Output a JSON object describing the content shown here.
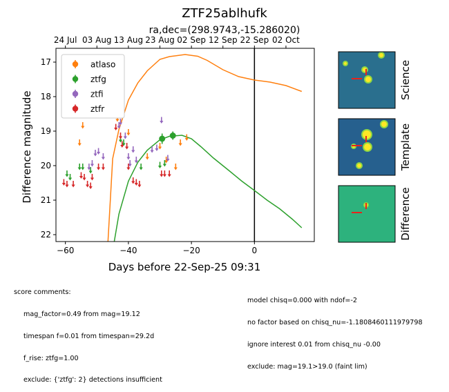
{
  "title": "ZTF25ablhufk",
  "subtitle": "ra,dec=(298.9743,-15.286020)",
  "chart_data": {
    "type": "scatter",
    "title": "ZTF25ablhufk",
    "subtitle": "ra,dec=(298.9743,-15.286020)",
    "xlabel": "Days before 22-Sep-25 09:31",
    "ylabel": "Difference magnitude",
    "xlim": [
      -63,
      19
    ],
    "ylim": [
      22.2,
      16.6
    ],
    "y_inverted": true,
    "x_ticks": [
      -60,
      -40,
      -20,
      0
    ],
    "y_ticks": [
      17,
      18,
      19,
      20,
      21,
      22
    ],
    "top_axis_ticks": [
      {
        "label": "24 Jul",
        "x": -60
      },
      {
        "label": "03 Aug",
        "x": -50
      },
      {
        "label": "13 Aug",
        "x": -40
      },
      {
        "label": "23 Aug",
        "x": -30
      },
      {
        "label": "02 Sep",
        "x": -20
      },
      {
        "label": "12 Sep",
        "x": -10
      },
      {
        "label": "22 Sep",
        "x": 0
      },
      {
        "label": "02 Oct",
        "x": 10
      }
    ],
    "vertical_line_x": 0,
    "legend": {
      "position": "top-left",
      "entries": [
        "atlaso",
        "ztfg",
        "ztfi",
        "ztfr"
      ]
    },
    "colors": {
      "atlaso": "#ff7f0e",
      "ztfg": "#2ca02c",
      "ztfi": "#9467bd",
      "ztfr": "#d62728"
    },
    "series": [
      {
        "name": "atlaso",
        "kind": "limits",
        "color": "#ff7f0e",
        "points": [
          [
            -55.5,
            19.3
          ],
          [
            -54.5,
            18.8
          ],
          [
            -43.5,
            18.6
          ],
          [
            -40,
            19.0
          ],
          [
            -34,
            19.7
          ],
          [
            -30,
            19.4
          ],
          [
            -28,
            19.8
          ],
          [
            -25,
            20.0
          ],
          [
            -23.5,
            19.3
          ],
          [
            -21.5,
            19.15
          ]
        ]
      },
      {
        "name": "ztfg",
        "kind": "limits",
        "color": "#2ca02c",
        "points": [
          [
            -59.5,
            20.2
          ],
          [
            -58.5,
            20.3
          ],
          [
            -55.5,
            20.0
          ],
          [
            -54.5,
            20.0
          ],
          [
            -52,
            20.1
          ],
          [
            -42.5,
            19.2
          ],
          [
            -41.5,
            19.3
          ],
          [
            -36,
            20.0
          ],
          [
            -30,
            19.95
          ],
          [
            -28.5,
            19.9
          ]
        ]
      },
      {
        "name": "ztfg",
        "kind": "detections",
        "color": "#2ca02c",
        "points": [
          [
            -29.3,
            19.22,
            0.15
          ],
          [
            -25.9,
            19.13,
            0.12
          ]
        ]
      },
      {
        "name": "ztfi",
        "kind": "limits",
        "color": "#9467bd",
        "points": [
          [
            -52.5,
            20.0
          ],
          [
            -51.5,
            19.9
          ],
          [
            -50.5,
            19.6
          ],
          [
            -49.5,
            19.55
          ],
          [
            -48,
            19.7
          ],
          [
            -43,
            18.8
          ],
          [
            -42.5,
            18.7
          ],
          [
            -41,
            19.1
          ],
          [
            -40,
            19.7
          ],
          [
            -39.5,
            19.9
          ],
          [
            -38.5,
            19.5
          ],
          [
            -37.5,
            19.8
          ],
          [
            -32.5,
            19.5
          ],
          [
            -31,
            19.45
          ],
          [
            -29.5,
            18.65
          ],
          [
            -27.5,
            19.75
          ]
        ]
      },
      {
        "name": "ztfr",
        "kind": "limits",
        "color": "#d62728",
        "points": [
          [
            -60.5,
            20.45
          ],
          [
            -59.5,
            20.5
          ],
          [
            -57.5,
            20.5
          ],
          [
            -55,
            20.25
          ],
          [
            -54,
            20.3
          ],
          [
            -53,
            20.5
          ],
          [
            -52,
            20.55
          ],
          [
            -51.5,
            20.3
          ],
          [
            -49.5,
            20.0
          ],
          [
            -48,
            20.0
          ],
          [
            -44,
            18.85
          ],
          [
            -42.5,
            19.1
          ],
          [
            -42,
            19.35
          ],
          [
            -40.5,
            19.4
          ],
          [
            -40,
            20.0
          ],
          [
            -38.5,
            20.4
          ],
          [
            -37.5,
            20.45
          ],
          [
            -36.5,
            20.5
          ],
          [
            -29.5,
            20.2
          ],
          [
            -28.5,
            20.2
          ],
          [
            -27,
            20.2
          ]
        ]
      }
    ],
    "models": [
      {
        "name": "atlaso",
        "color": "#ff7f0e",
        "points": [
          [
            -46.5,
            22.2
          ],
          [
            -45,
            19.8
          ],
          [
            -43,
            18.95
          ],
          [
            -40,
            18.1
          ],
          [
            -37,
            17.6
          ],
          [
            -34,
            17.25
          ],
          [
            -30,
            16.92
          ],
          [
            -27,
            16.84
          ],
          [
            -22,
            16.78
          ],
          [
            -18,
            16.83
          ],
          [
            -15,
            16.95
          ],
          [
            -10,
            17.22
          ],
          [
            -5,
            17.42
          ],
          [
            0,
            17.52
          ],
          [
            5,
            17.58
          ],
          [
            10,
            17.68
          ],
          [
            15,
            17.85
          ]
        ]
      },
      {
        "name": "ztfg",
        "color": "#2ca02c",
        "points": [
          [
            -44.5,
            22.2
          ],
          [
            -43,
            21.4
          ],
          [
            -40,
            20.45
          ],
          [
            -37,
            19.9
          ],
          [
            -34,
            19.55
          ],
          [
            -30,
            19.25
          ],
          [
            -27,
            19.15
          ],
          [
            -23,
            19.12
          ],
          [
            -20,
            19.22
          ],
          [
            -17,
            19.45
          ],
          [
            -13,
            19.78
          ],
          [
            -8,
            20.15
          ],
          [
            -4,
            20.45
          ],
          [
            0,
            20.72
          ],
          [
            4,
            21.0
          ],
          [
            8,
            21.25
          ],
          [
            12,
            21.55
          ],
          [
            15,
            21.8
          ]
        ]
      }
    ]
  },
  "stamps": {
    "labels": [
      "Science",
      "Template",
      "Difference"
    ]
  },
  "comments": {
    "heading": "score comments:",
    "left": [
      "mag_factor=0.49 from mag=19.12",
      "timespan f=0.01 from timespan=29.2d",
      "f_rise: ztfg=1.00",
      "exclude: {'ztfg': 2} detections insufficient"
    ],
    "right": [
      "model chisq=0.000 with ndof=-2",
      "no factor based on chisq_nu=-1.1808460111979798",
      "ignore interest 0.01 from chisq_nu -0.00",
      "exclude: mag=19.1>19.0 (faint lim)"
    ]
  }
}
